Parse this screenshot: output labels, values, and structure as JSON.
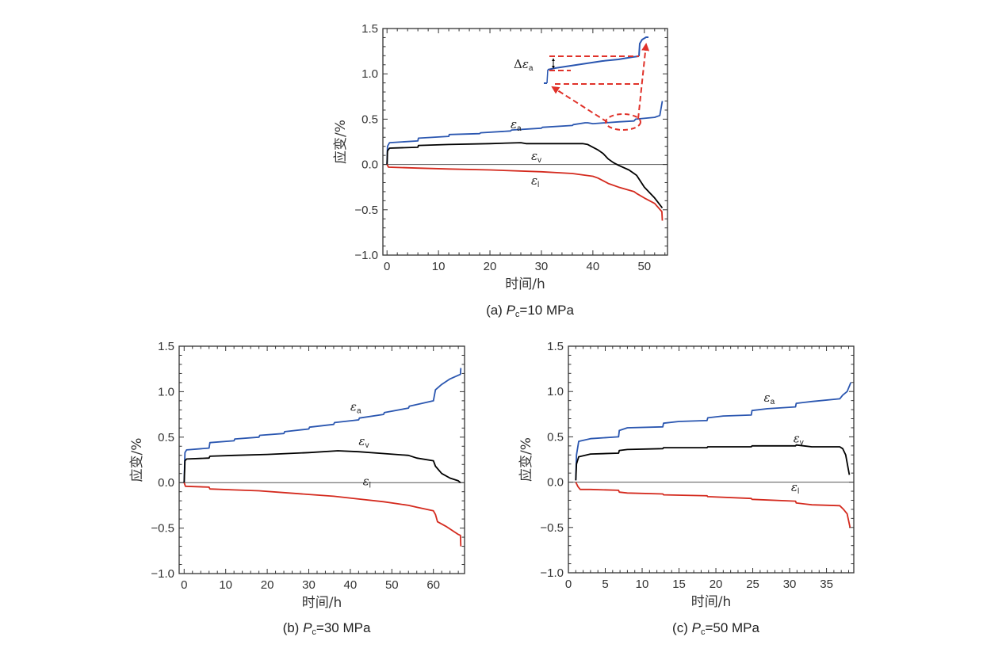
{
  "chart_data": [
    {
      "id": "a",
      "type": "line",
      "caption_prefix": "(a)",
      "caption_var": "P",
      "caption_sub": "c",
      "caption_value": "=10 MPa",
      "xlabel": "时间/h",
      "ylabel": "应变/%",
      "xlim": [
        -0.8,
        54.5
      ],
      "ylim": [
        -1.0,
        1.5
      ],
      "xticks": [
        0,
        10,
        20,
        30,
        40,
        50
      ],
      "yticks": [
        -1.0,
        -0.5,
        0.0,
        0.5,
        1.0,
        1.5
      ],
      "ytick_labels": [
        "−1.0",
        "−0.5",
        "0.0",
        "0.5",
        "1.0",
        "1.5"
      ],
      "zero_line": true,
      "series": [
        {
          "name": "εa",
          "label_main": "ε",
          "label_sub": "a",
          "color": "#2a56b0",
          "label_at": [
            24,
            0.4
          ],
          "x": [
            0,
            0.1,
            0.5,
            6,
            6.1,
            12,
            12.1,
            18,
            18.2,
            24,
            24.2,
            30,
            30.2,
            36,
            36.2,
            38.5,
            39,
            40,
            45,
            48,
            48.3,
            52,
            53,
            53.5
          ],
          "y": [
            0,
            0.2,
            0.24,
            0.26,
            0.29,
            0.31,
            0.33,
            0.34,
            0.35,
            0.37,
            0.38,
            0.4,
            0.41,
            0.43,
            0.44,
            0.46,
            0.46,
            0.45,
            0.47,
            0.48,
            0.5,
            0.52,
            0.54,
            0.7
          ]
        },
        {
          "name": "εv",
          "label_main": "ε",
          "label_sub": "v",
          "color": "#000000",
          "label_at": [
            28,
            0.05
          ],
          "x": [
            0,
            0.1,
            0.5,
            6,
            6.1,
            12,
            20,
            26,
            27,
            35,
            38,
            39,
            41,
            42,
            43,
            44,
            45,
            47,
            48,
            48.5,
            50,
            52,
            53.5
          ],
          "y": [
            0,
            0.15,
            0.18,
            0.19,
            0.21,
            0.22,
            0.23,
            0.24,
            0.23,
            0.23,
            0.23,
            0.22,
            0.16,
            0.12,
            0.06,
            0.02,
            -0.01,
            -0.06,
            -0.1,
            -0.12,
            -0.25,
            -0.37,
            -0.48
          ]
        },
        {
          "name": "εl",
          "label_main": "ε",
          "label_sub": "l",
          "color": "#d42a1e",
          "label_at": [
            28,
            -0.22
          ],
          "x": [
            0,
            0.3,
            6,
            12,
            20,
            30,
            36,
            40,
            41,
            42,
            43,
            45,
            48,
            48.5,
            50,
            52,
            53.4,
            53.5
          ],
          "y": [
            0,
            -0.03,
            -0.04,
            -0.05,
            -0.06,
            -0.08,
            -0.1,
            -0.13,
            -0.15,
            -0.18,
            -0.21,
            -0.25,
            -0.3,
            -0.32,
            -0.37,
            -0.43,
            -0.52,
            -0.62
          ]
        }
      ],
      "inset": {
        "label_delta": "Δ",
        "label_main": "ε",
        "label_sub": "a",
        "arrow_color": "#e0322a",
        "curve_color": "#2a56b0"
      }
    },
    {
      "id": "b",
      "type": "line",
      "caption_prefix": "(b)",
      "caption_var": "P",
      "caption_sub": "c",
      "caption_value": "=30 MPa",
      "xlabel": "时间/h",
      "ylabel": "应变/%",
      "xlim": [
        -1.2,
        67.5
      ],
      "ylim": [
        -1.0,
        1.5
      ],
      "xticks": [
        0,
        10,
        20,
        30,
        40,
        50,
        60
      ],
      "yticks": [
        -1.0,
        -0.5,
        0.0,
        0.5,
        1.0,
        1.5
      ],
      "ytick_labels": [
        "−1.0",
        "−0.5",
        "0.0",
        "0.5",
        "1.0",
        "1.5"
      ],
      "zero_line": true,
      "series": [
        {
          "name": "εa",
          "label_main": "ε",
          "label_sub": "a",
          "color": "#2a56b0",
          "label_at": [
            40,
            0.79
          ],
          "x": [
            0,
            0.2,
            0.6,
            6,
            6.2,
            12,
            12.2,
            18,
            18.2,
            24,
            24.2,
            30,
            30.2,
            36,
            36.2,
            42,
            42.2,
            48,
            48.2,
            54,
            54.2,
            60,
            60.5,
            62,
            64,
            66,
            66.5,
            66.6
          ],
          "y": [
            0,
            0.33,
            0.36,
            0.38,
            0.44,
            0.46,
            0.48,
            0.5,
            0.52,
            0.54,
            0.56,
            0.59,
            0.61,
            0.64,
            0.66,
            0.69,
            0.71,
            0.75,
            0.77,
            0.82,
            0.84,
            0.9,
            1.02,
            1.08,
            1.14,
            1.18,
            1.19,
            1.26
          ]
        },
        {
          "name": "εv",
          "label_main": "ε",
          "label_sub": "v",
          "color": "#000000",
          "label_at": [
            42,
            0.41
          ],
          "x": [
            0,
            0.2,
            0.6,
            6,
            6.2,
            12,
            20,
            30,
            37,
            42,
            48,
            54,
            56,
            60,
            60.5,
            62,
            64,
            66,
            66.5
          ],
          "y": [
            0,
            0.24,
            0.26,
            0.27,
            0.29,
            0.3,
            0.31,
            0.33,
            0.35,
            0.34,
            0.32,
            0.3,
            0.27,
            0.24,
            0.18,
            0.1,
            0.05,
            0.02,
            0.0
          ]
        },
        {
          "name": "εl",
          "label_main": "ε",
          "label_sub": "l",
          "color": "#d42a1e",
          "label_at": [
            43,
            -0.03
          ],
          "x": [
            0,
            0.3,
            6,
            6.2,
            12,
            18,
            24,
            30,
            36,
            42,
            48,
            54,
            56,
            60,
            60.5,
            61,
            63,
            66,
            66.5,
            66.6
          ],
          "y": [
            0,
            -0.04,
            -0.05,
            -0.07,
            -0.08,
            -0.09,
            -0.11,
            -0.13,
            -0.15,
            -0.18,
            -0.21,
            -0.25,
            -0.27,
            -0.31,
            -0.35,
            -0.43,
            -0.48,
            -0.57,
            -0.58,
            -0.7
          ]
        }
      ]
    },
    {
      "id": "c",
      "type": "line",
      "caption_prefix": "(c)",
      "caption_var": "P",
      "caption_sub": "c",
      "caption_value": "=50 MPa",
      "xlabel": "时间/h",
      "ylabel": "应变/%",
      "xlim": [
        0,
        38.7
      ],
      "ylim": [
        -1.0,
        1.5
      ],
      "xticks": [
        0,
        5,
        10,
        15,
        20,
        25,
        30,
        35
      ],
      "yticks": [
        -1.0,
        -0.5,
        0.0,
        0.5,
        1.0,
        1.5
      ],
      "ytick_labels": [
        "−1.0",
        "−0.5",
        "0.0",
        "0.5",
        "1.0",
        "1.5"
      ],
      "zero_line": true,
      "series": [
        {
          "name": "εa",
          "label_main": "ε",
          "label_sub": "a",
          "color": "#2a56b0",
          "label_at": [
            26.5,
            0.89
          ],
          "x": [
            1,
            1.1,
            1.4,
            3,
            6.8,
            6.9,
            8,
            12.8,
            12.9,
            15,
            18.8,
            18.9,
            21,
            24.8,
            24.9,
            27,
            30.8,
            30.9,
            33,
            36.8,
            37.2,
            37.8,
            38.3
          ],
          "y": [
            0.02,
            0.3,
            0.45,
            0.48,
            0.5,
            0.57,
            0.6,
            0.61,
            0.65,
            0.67,
            0.68,
            0.71,
            0.73,
            0.74,
            0.79,
            0.81,
            0.83,
            0.87,
            0.89,
            0.92,
            0.96,
            1.0,
            1.1
          ]
        },
        {
          "name": "εv",
          "label_main": "ε",
          "label_sub": "v",
          "color": "#000000",
          "label_at": [
            30.5,
            0.44
          ],
          "x": [
            1,
            1.1,
            1.4,
            3,
            6.8,
            6.9,
            8,
            12.8,
            12.9,
            18.8,
            18.9,
            24.8,
            24.9,
            30.8,
            30.9,
            33,
            36.8,
            37.2,
            37.6,
            38.1
          ],
          "y": [
            0.02,
            0.2,
            0.28,
            0.31,
            0.32,
            0.35,
            0.36,
            0.37,
            0.38,
            0.38,
            0.39,
            0.39,
            0.4,
            0.4,
            0.41,
            0.39,
            0.39,
            0.37,
            0.3,
            0.08
          ]
        },
        {
          "name": "εl",
          "label_main": "ε",
          "label_sub": "l",
          "color": "#d42a1e",
          "label_at": [
            30.2,
            -0.1
          ],
          "x": [
            1,
            1.3,
            1.6,
            3,
            6.8,
            6.9,
            8,
            12.8,
            12.9,
            18.8,
            18.9,
            24.8,
            24.9,
            30.8,
            30.9,
            33,
            36.8,
            37.3,
            37.8,
            38.2
          ],
          "y": [
            0,
            -0.05,
            -0.08,
            -0.08,
            -0.09,
            -0.11,
            -0.12,
            -0.13,
            -0.14,
            -0.15,
            -0.16,
            -0.18,
            -0.19,
            -0.21,
            -0.23,
            -0.25,
            -0.26,
            -0.3,
            -0.35,
            -0.5
          ]
        }
      ]
    }
  ]
}
